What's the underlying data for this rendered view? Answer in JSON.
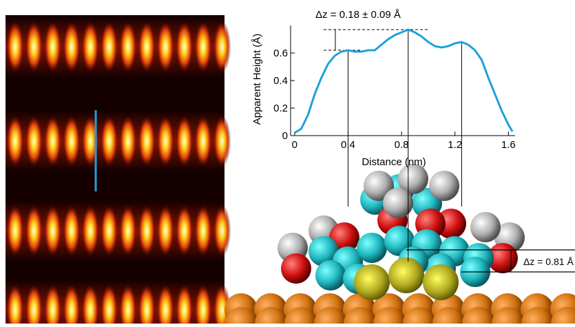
{
  "chart_data": {
    "type": "line",
    "x_label": "Distance (nm)",
    "y_label": "Apparent Height (Å)",
    "annotations": [
      "Δz = 0.18 ± 0.09 Å",
      "Δz = 0.81 Å"
    ],
    "x": [
      0,
      0.05,
      0.1,
      0.15,
      0.2,
      0.25,
      0.3,
      0.35,
      0.4,
      0.45,
      0.5,
      0.55,
      0.6,
      0.65,
      0.7,
      0.75,
      0.8,
      0.85,
      0.9,
      0.95,
      1.0,
      1.05,
      1.1,
      1.15,
      1.2,
      1.25,
      1.3,
      1.35,
      1.4,
      1.45,
      1.5,
      1.55,
      1.6,
      1.63
    ],
    "values": [
      0.02,
      0.05,
      0.15,
      0.3,
      0.42,
      0.52,
      0.58,
      0.61,
      0.62,
      0.61,
      0.61,
      0.62,
      0.62,
      0.66,
      0.7,
      0.73,
      0.75,
      0.77,
      0.75,
      0.72,
      0.68,
      0.65,
      0.64,
      0.65,
      0.67,
      0.68,
      0.66,
      0.62,
      0.55,
      0.42,
      0.3,
      0.18,
      0.08,
      0.03
    ],
    "color": "#1ea0dc",
    "xlim": [
      -0.03,
      1.65
    ],
    "ylim": [
      0,
      0.8
    ],
    "xticks": [
      0,
      0.4,
      0.8,
      1.2,
      1.6
    ],
    "yticks": [
      0,
      0.2,
      0.4,
      0.6
    ]
  }
}
